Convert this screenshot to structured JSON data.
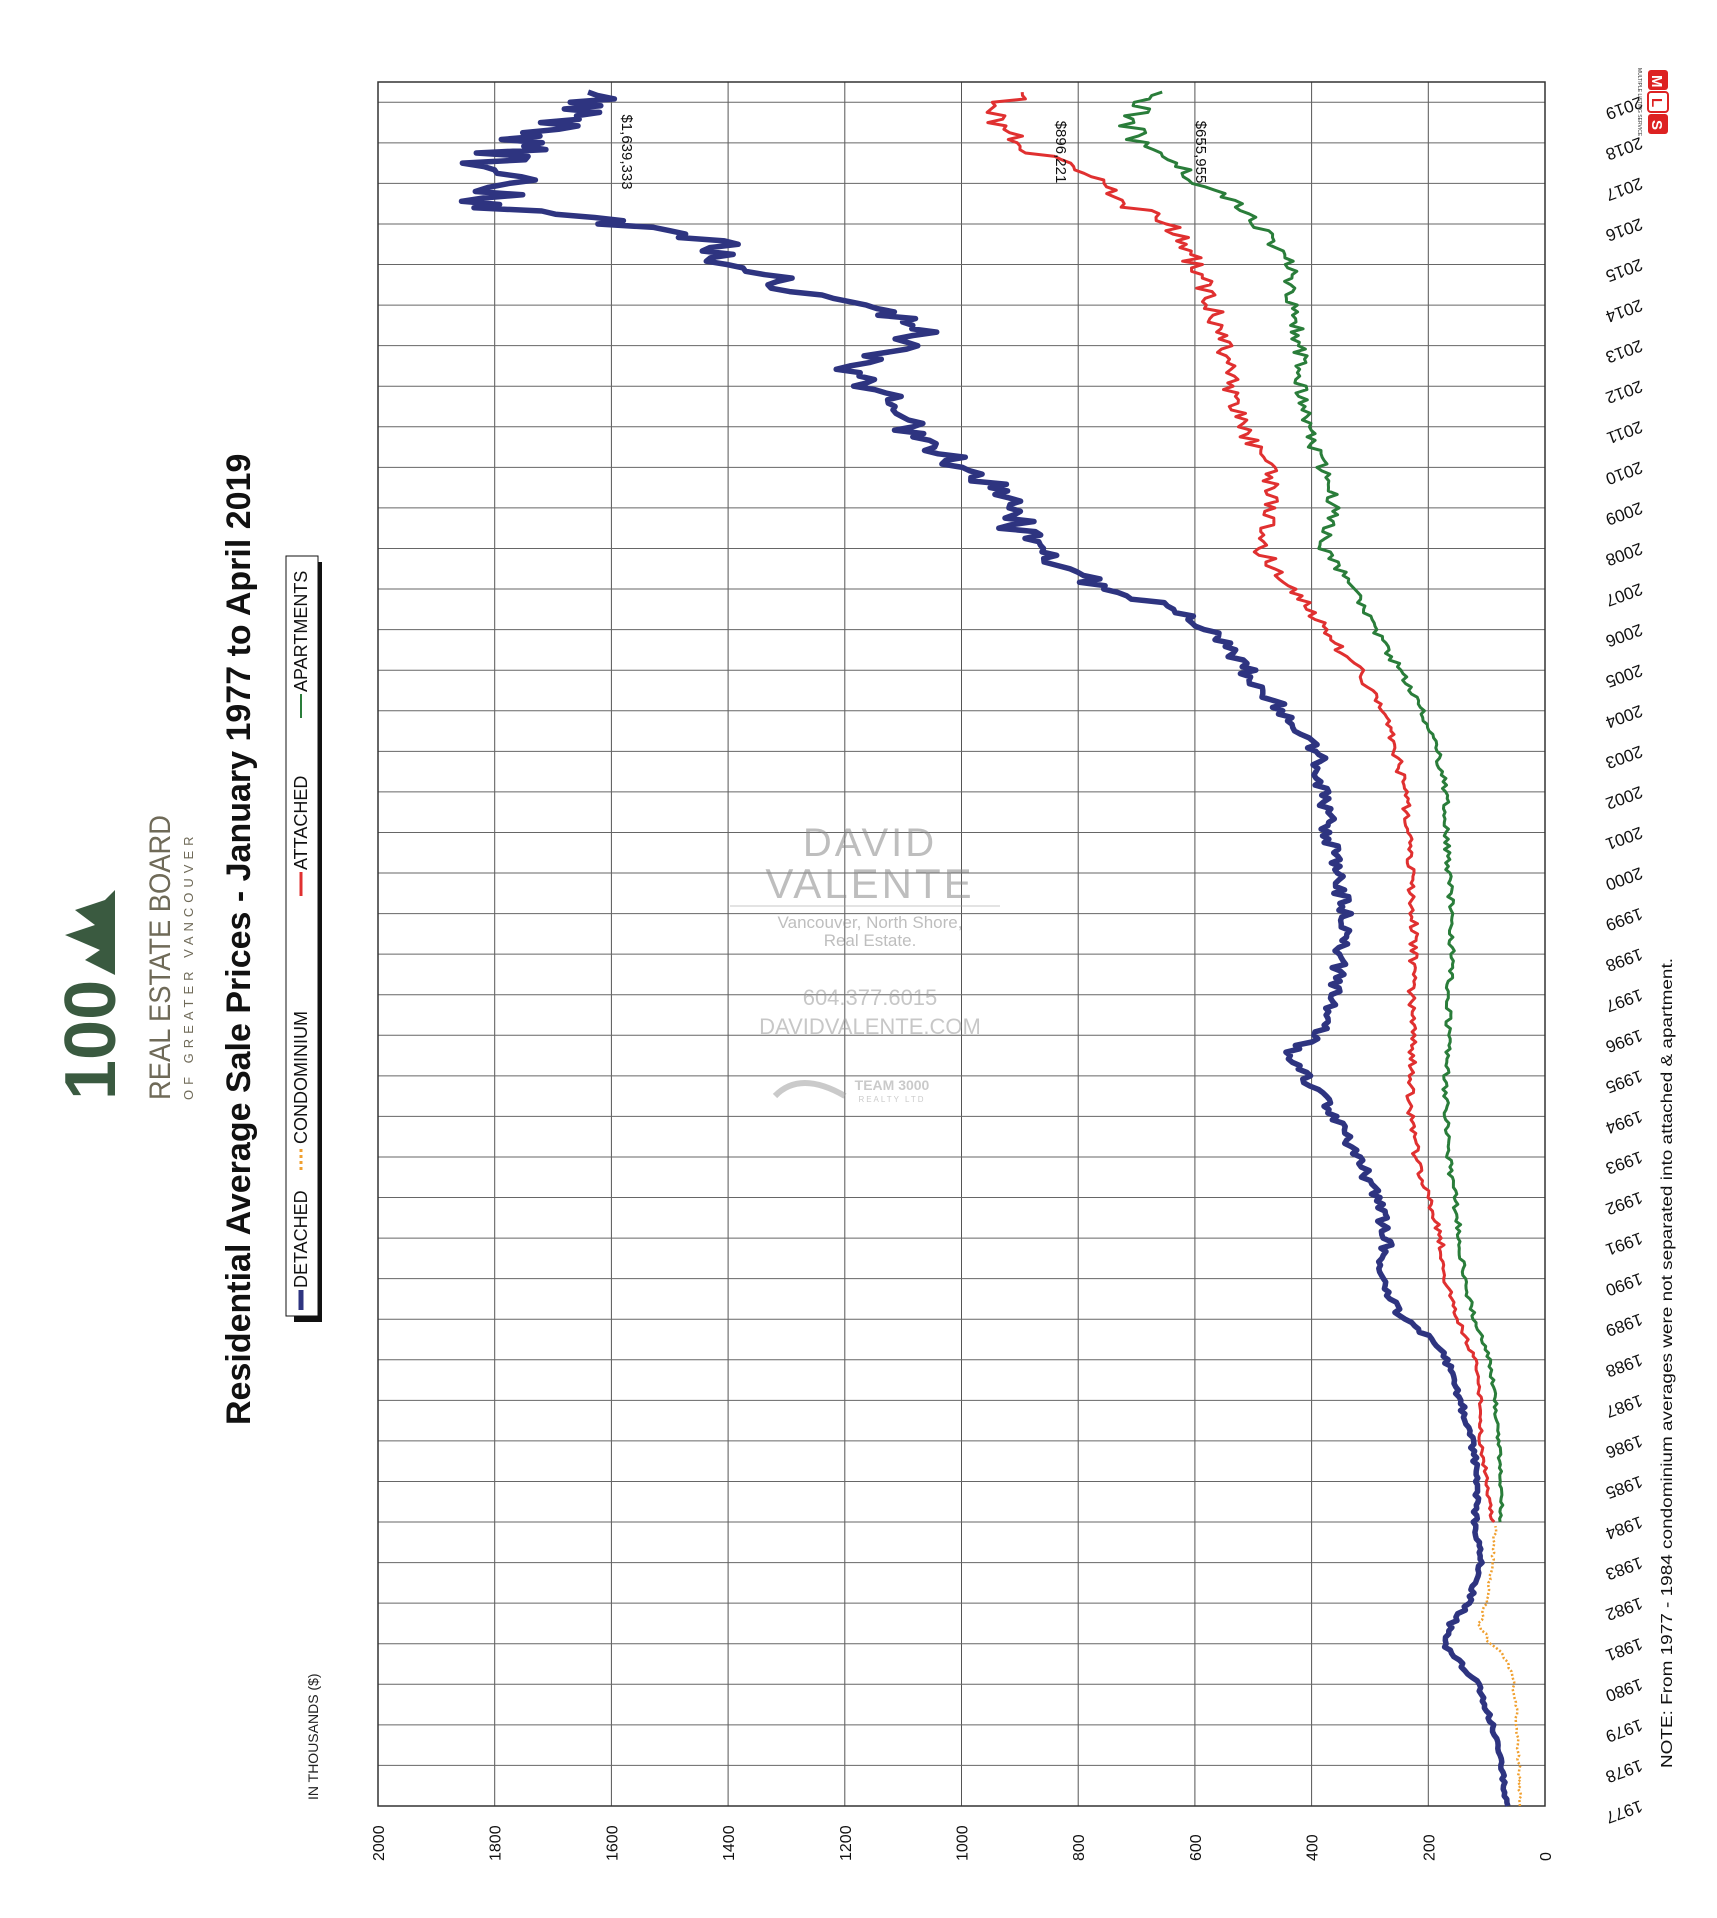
{
  "chart_data": {
    "type": "line",
    "title": "Residential Average Sale Prices  -  January 1977 to April 2019",
    "ylabel": "IN THOUSANDS ($)",
    "ylim": [
      0,
      2000
    ],
    "y_ticks": [
      2000,
      1800,
      1600,
      1400,
      1200,
      1000,
      800,
      600,
      400,
      200,
      0
    ],
    "x_categories": [
      "1977",
      "1978",
      "1979",
      "1980",
      "1981",
      "1982",
      "1983",
      "1984",
      "1985",
      "1986",
      "1987",
      "1988",
      "1989",
      "1990",
      "1991",
      "1992",
      "1993",
      "1994",
      "1995",
      "1996",
      "1997",
      "1998",
      "1999",
      "2000",
      "2001",
      "2002",
      "2003",
      "2004",
      "2005",
      "2006",
      "2007",
      "2008",
      "2009",
      "2010",
      "2011",
      "2012",
      "2013",
      "2014",
      "2015",
      "2016",
      "2017",
      "2018",
      "2019"
    ],
    "grid": true,
    "legend_placement": "top",
    "series": [
      {
        "name": "DETACHED",
        "color": "#2e3480",
        "style": "solid-thick",
        "x": [
          1977.0,
          1978.0,
          1979.0,
          1980.0,
          1980.6,
          1981.0,
          1981.4,
          1982.0,
          1983.0,
          1984.0,
          1985.0,
          1986.0,
          1987.0,
          1988.0,
          1988.6,
          1989.0,
          1990.0,
          1991.0,
          1992.0,
          1993.0,
          1994.0,
          1995.0,
          1995.5,
          1996.0,
          1997.0,
          1998.0,
          1999.0,
          2000.0,
          2001.0,
          2002.0,
          2003.0,
          2004.0,
          2005.0,
          2006.0,
          2006.5,
          2007.0,
          2007.5,
          2008.0,
          2008.5,
          2009.0,
          2010.0,
          2011.0,
          2012.0,
          2012.5,
          2013.0,
          2013.5,
          2014.0,
          2014.5,
          2015.0,
          2015.5,
          2016.0,
          2016.4,
          2016.8,
          2017.0,
          2017.5,
          2018.0,
          2018.5,
          2019.0,
          2019.25
        ],
        "y": [
          65,
          75,
          90,
          115,
          150,
          175,
          165,
          130,
          110,
          120,
          115,
          125,
          145,
          170,
          200,
          245,
          280,
          270,
          290,
          320,
          360,
          410,
          440,
          390,
          360,
          350,
          340,
          360,
          370,
          380,
          390,
          450,
          510,
          580,
          630,
          760,
          820,
          860,
          910,
          890,
          1000,
          1100,
          1150,
          1200,
          1100,
          1050,
          1200,
          1300,
          1400,
          1420,
          1600,
          1780,
          1820,
          1760,
          1800,
          1750,
          1680,
          1650,
          1640
        ]
      },
      {
        "name": "CONDOMINIUM",
        "color": "#f0a030",
        "style": "dotted",
        "x": [
          1977.0,
          1978.0,
          1979.0,
          1979.8,
          1980.4,
          1980.8,
          1981.0,
          1981.5,
          1982.0,
          1983.0,
          1983.9
        ],
        "y": [
          42,
          45,
          48,
          52,
          60,
          75,
          95,
          112,
          100,
          90,
          85
        ]
      },
      {
        "name": "ATTACHED",
        "color": "#e03030",
        "style": "solid",
        "x": [
          1984.0,
          1985.0,
          1986.0,
          1987.0,
          1988.0,
          1989.0,
          1990.0,
          1991.0,
          1992.0,
          1993.0,
          1994.0,
          1995.0,
          1996.0,
          1997.0,
          1998.0,
          1999.0,
          2000.0,
          2001.0,
          2002.0,
          2003.0,
          2004.0,
          2005.0,
          2006.0,
          2007.0,
          2008.0,
          2009.0,
          2010.0,
          2011.0,
          2012.0,
          2013.0,
          2014.0,
          2015.0,
          2016.0,
          2016.5,
          2017.0,
          2017.5,
          2018.0,
          2018.5,
          2019.0,
          2019.25
        ],
        "y": [
          90,
          100,
          110,
          110,
          120,
          150,
          170,
          180,
          200,
          220,
          230,
          230,
          225,
          230,
          225,
          225,
          230,
          235,
          240,
          255,
          280,
          320,
          380,
          430,
          490,
          470,
          470,
          520,
          540,
          550,
          570,
          600,
          640,
          720,
          760,
          830,
          900,
          940,
          920,
          896
        ]
      },
      {
        "name": "APARTMENTS",
        "color": "#2a7d3a",
        "style": "solid",
        "x": [
          1984.0,
          1985.0,
          1986.0,
          1987.0,
          1988.0,
          1989.0,
          1990.0,
          1991.0,
          1992.0,
          1993.0,
          1994.0,
          1995.0,
          1996.0,
          1997.0,
          1998.0,
          1999.0,
          2000.0,
          2001.0,
          2002.0,
          2003.0,
          2004.0,
          2005.0,
          2006.0,
          2007.0,
          2008.0,
          2009.0,
          2010.0,
          2011.0,
          2012.0,
          2013.0,
          2014.0,
          2015.0,
          2016.0,
          2016.5,
          2017.0,
          2017.5,
          2018.0,
          2018.5,
          2019.0,
          2019.25
        ],
        "y": [
          75,
          75,
          80,
          85,
          95,
          120,
          140,
          145,
          155,
          165,
          170,
          170,
          165,
          165,
          160,
          160,
          165,
          170,
          170,
          185,
          210,
          250,
          290,
          330,
          380,
          360,
          380,
          410,
          420,
          420,
          430,
          440,
          490,
          530,
          590,
          630,
          700,
          710,
          690,
          656
        ]
      }
    ],
    "annotations": [
      {
        "text": "$1,639,333",
        "series": "DETACHED"
      },
      {
        "text": "$896,221",
        "series": "ATTACHED"
      },
      {
        "text": "$655,955",
        "series": "APARTMENTS"
      }
    ],
    "note": "NOTE:  From 1977 - 1984 condominium averages were not separated into attached & apartment."
  },
  "branding": {
    "board_name": "REAL ESTATE BOARD",
    "board_region": "OF  GREATER  VANCOUVER",
    "logo_number": "100",
    "mls_letters": [
      "M",
      "L",
      "S"
    ],
    "mls_tagline": "MULTIPLE LISTING SERVICE",
    "watermark": {
      "name_line1": "DAVID",
      "name_line2": "VALENTE",
      "tagline1": "Vancouver, North Shore,",
      "tagline2": "Real Estate.",
      "phone": "604.377.6015",
      "website": "DAVIDVALENTE.COM",
      "brokerage": "TEAM 3000",
      "brokerage_sub": "REALTY LTD"
    }
  }
}
